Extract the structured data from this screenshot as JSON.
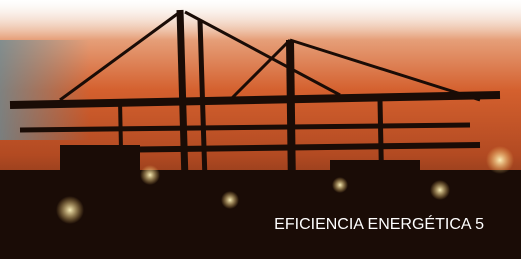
{
  "caption": "EFICIENCIA ENERGÉTICA 5"
}
